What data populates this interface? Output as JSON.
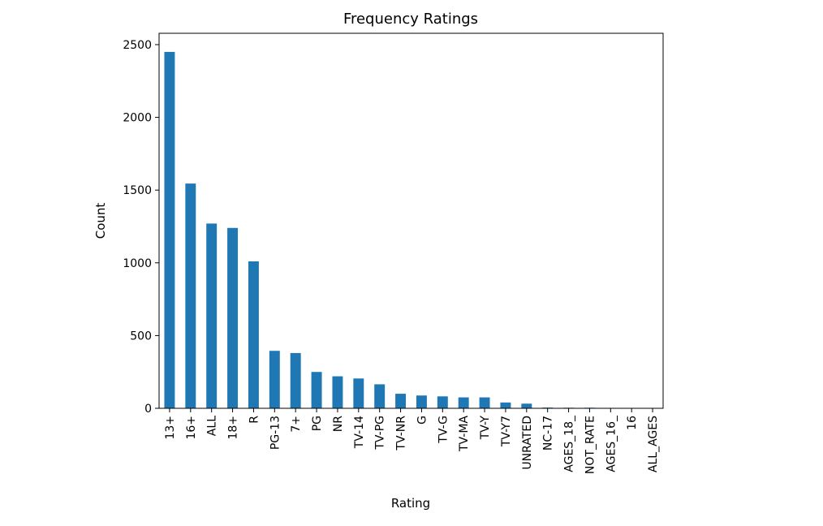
{
  "chart_data": {
    "type": "bar",
    "title": "Frequency Ratings",
    "xlabel": "Rating",
    "ylabel": "Count",
    "categories": [
      "13+",
      "16+",
      "ALL",
      "18+",
      "R",
      "PG-13",
      "7+",
      "PG",
      "NR",
      "TV-14",
      "TV-PG",
      "TV-NR",
      "G",
      "TV-G",
      "TV-MA",
      "TV-Y",
      "TV-Y7",
      "UNRATED",
      "NC-17",
      "AGES_18_",
      "NOT_RATE",
      "AGES_16_",
      "16",
      "ALL_AGES"
    ],
    "values": [
      2450,
      1545,
      1270,
      1240,
      1010,
      395,
      380,
      250,
      220,
      205,
      165,
      100,
      88,
      82,
      75,
      75,
      40,
      32,
      5,
      4,
      4,
      1,
      1,
      1
    ],
    "yticks": [
      0,
      500,
      1000,
      1500,
      2000,
      2500
    ],
    "ylim": [
      0,
      2578
    ],
    "bar_color": "#1f77b4",
    "grid": false,
    "legend": "none"
  }
}
